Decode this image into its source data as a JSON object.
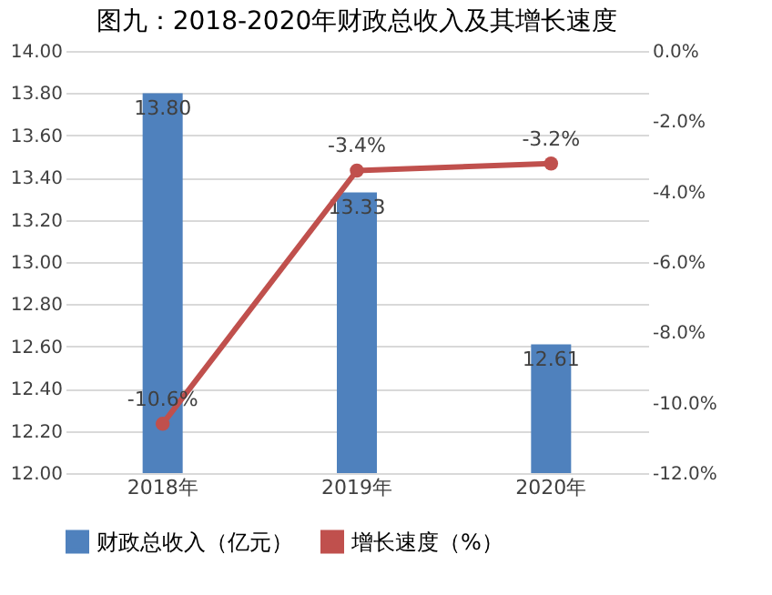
{
  "chart_data": {
    "type": "bar",
    "title": "图九：2018-2020年财政总收入及其增长速度",
    "categories": [
      "2018年",
      "2019年",
      "2020年"
    ],
    "series": [
      {
        "name": "财政总收入（亿元）",
        "color": "#4f81bd",
        "values": [
          13.8,
          13.33,
          12.61
        ],
        "value_labels": [
          "13.80",
          "13.33",
          "12.61"
        ]
      },
      {
        "name": "增长速度（%）",
        "type": "line",
        "axis": "y2",
        "color": "#c0504d",
        "marker": "circle",
        "values": [
          -10.6,
          -3.4,
          -3.2
        ],
        "value_labels": [
          "-10.6%",
          "-3.4%",
          "-3.2%"
        ]
      }
    ],
    "ylim": [
      12,
      14
    ],
    "yticks": [
      {
        "value": 12,
        "label": "12.00"
      },
      {
        "value": 12.2,
        "label": "12.20"
      },
      {
        "value": 12.4,
        "label": "12.40"
      },
      {
        "value": 12.6,
        "label": "12.60"
      },
      {
        "value": 12.8,
        "label": "12.80"
      },
      {
        "value": 13,
        "label": "13.00"
      },
      {
        "value": 13.2,
        "label": "13.20"
      },
      {
        "value": 13.4,
        "label": "13.40"
      },
      {
        "value": 13.6,
        "label": "13.60"
      },
      {
        "value": 13.8,
        "label": "13.80"
      },
      {
        "value": 14,
        "label": "14.00"
      }
    ],
    "y2lim": [
      -12,
      0
    ],
    "y2ticks": [
      {
        "value": -12,
        "label": "-12.0%"
      },
      {
        "value": -10,
        "label": "-10.0%"
      },
      {
        "value": -8,
        "label": "-8.0%"
      },
      {
        "value": -6,
        "label": "-6.0%"
      },
      {
        "value": -4,
        "label": "-4.0%"
      },
      {
        "value": -2,
        "label": "-2.0%"
      },
      {
        "value": 0,
        "label": "0.0%"
      }
    ],
    "grid": "y",
    "legend": "bottom"
  }
}
